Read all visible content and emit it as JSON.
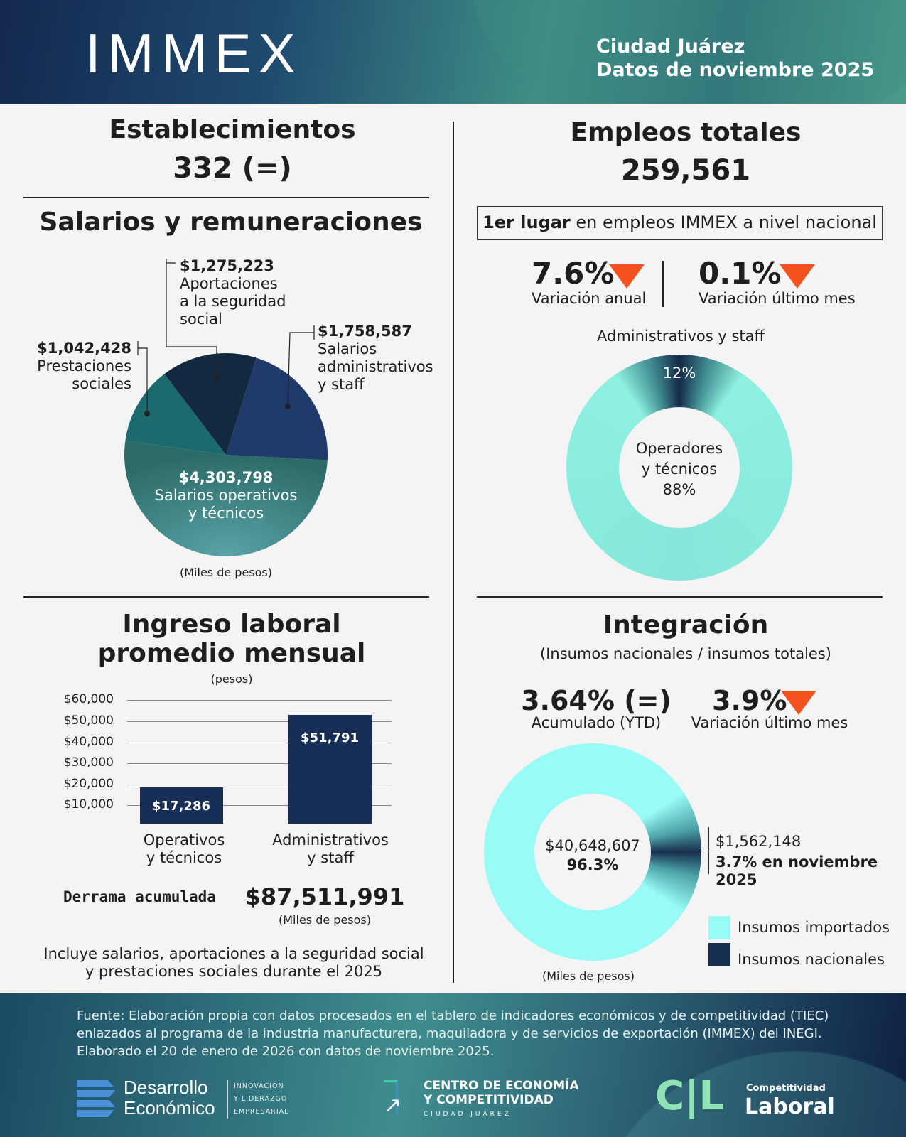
{
  "header": {
    "title": "IMMEX",
    "city": "Ciudad Juárez",
    "period": "Datos de noviembre 2025"
  },
  "establecimientos": {
    "title": "Establecimientos",
    "value": "332 (=)"
  },
  "salarios": {
    "title": "Salarios y remuneraciones",
    "unit": "(Miles de pesos)",
    "labels": [
      {
        "value": "$4,303,798",
        "l1": "Salarios operativos",
        "l2": "y técnicos"
      },
      {
        "value": "$1,758,587",
        "l1": "Salarios",
        "l2": "administrativos",
        "l3": "y staff"
      },
      {
        "value": "$1,275,223",
        "l1": "Aportaciones",
        "l2": "a la seguridad",
        "l3": "social"
      },
      {
        "value": "$1,042,428",
        "l1": "Prestaciones",
        "l2": "sociales"
      }
    ]
  },
  "empleos": {
    "title": "Empleos totales",
    "value": "259,561",
    "rank_bold": "1er lugar",
    "rank_rest": " en empleos IMMEX a nivel nacional",
    "annual": {
      "value": "7.6%",
      "label": "Variación anual",
      "direction": "down"
    },
    "monthly": {
      "value": "0.1%",
      "label": "Variación último mes",
      "direction": "down"
    },
    "donut_top_label": "Administrativos y staff",
    "admin_pct": "12%",
    "center_l1": "Operadores",
    "center_l2": "y técnicos",
    "center_pct": "88%"
  },
  "ingreso": {
    "title1": "Ingreso laboral",
    "title2": "promedio mensual",
    "unit": "(pesos)",
    "derrama_label": "Derrama acumulada",
    "derrama_value": "$87,511,991",
    "derrama_unit": "(Miles de pesos)",
    "note1": "Incluye salarios, aportaciones a la seguridad social",
    "note2": "y prestaciones sociales durante el 2025",
    "cat1_l1": "Operativos",
    "cat1_l2": "y técnicos",
    "cat2_l1": "Administrativos",
    "cat2_l2": "y staff"
  },
  "integracion": {
    "title": "Integración",
    "subtitle": "(Insumos nacionales / insumos totales)",
    "ytd": {
      "value": "3.64% (=)",
      "label": "Acumulado (YTD)"
    },
    "monthly": {
      "value": "3.9%",
      "label": "Variación último mes",
      "direction": "down"
    },
    "center_value": "$40,648,607",
    "center_pct": "96.3%",
    "nac_value": "$1,562,148",
    "nac_note": "3.7% en noviembre 2025",
    "legend": [
      "Insumos importados",
      "Insumos nacionales"
    ],
    "unit": "(Miles de pesos)"
  },
  "footer": {
    "source1": "Fuente: Elaboración propia con datos procesados en el tablero de indicadores económicos y de competitividad (TIEC)",
    "source2": "enlazados al programa de la industria manufacturera, maquiladora y de servicios de exportación (IMMEX) del INEGI.",
    "source3": "Elaborado el 20 de enero de 2026 con datos de noviembre 2025.",
    "logo1_a": "Desarrollo",
    "logo1_b": "Económico",
    "logo1_tag": [
      "INNOVACIÓN",
      "Y LIDERAZGO",
      "EMPRESARIAL"
    ],
    "logo2_a": "CENTRO DE ECONOMÍA",
    "logo2_b": "Y COMPETITIVIDAD",
    "logo2_c": "CIUDAD JUÁREZ",
    "logo3_mark": "C|L",
    "logo3_a": "Competitividad",
    "logo3_b": "Laboral"
  },
  "colors": {
    "accent_down": "#f4511e",
    "navy": "#172f57",
    "mint": "#8ef0e0",
    "aqua": "#98fbf5"
  },
  "chart_data": [
    {
      "type": "pie",
      "unit": "Miles de pesos",
      "categories": [
        "Salarios operativos y técnicos",
        "Salarios administrativos y staff",
        "Aportaciones a la seguridad social",
        "Prestaciones sociales"
      ],
      "values": [
        4303798,
        1758587,
        1275223,
        1042428
      ],
      "colors": [
        "#3b8487",
        "#1f3a6b",
        "#13293f",
        "#1b6a6e"
      ]
    },
    {
      "type": "pie",
      "variant": "donut",
      "categories": [
        "Administrativos y staff",
        "Operadores y técnicos"
      ],
      "values": [
        12,
        88
      ],
      "colors": [
        "#142a4a",
        "#8ef0e0"
      ]
    },
    {
      "type": "bar",
      "ylabel": "",
      "ylim": [
        0,
        60000
      ],
      "yticks": [
        "$10,000",
        "$20,000",
        "$30,000",
        "$40,000",
        "$50,000",
        "$60,000"
      ],
      "categories": [
        "Operativos y técnicos",
        "Administrativos y staff"
      ],
      "values": [
        17286,
        51791
      ],
      "data_labels": [
        "$17,286",
        "$51,791"
      ],
      "grid": true
    },
    {
      "type": "pie",
      "variant": "donut",
      "unit": "Miles de pesos",
      "categories": [
        "Insumos importados",
        "Insumos nacionales"
      ],
      "values": [
        40648607,
        1562148
      ],
      "colors": [
        "#98fbf5",
        "#172f4f"
      ],
      "legend": "bottom-right"
    }
  ]
}
